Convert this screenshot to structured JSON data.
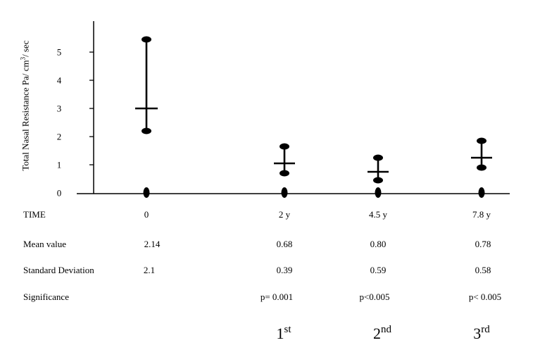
{
  "chart_data": {
    "type": "scatter",
    "ylabel": "Total Nasal Resistance  Pa/ cm3/ sec",
    "ylabel_parts": {
      "main": "Total Nasal Resistance  Pa/ cm",
      "sup": "3",
      "rest": "/ sec"
    },
    "y_ticks": [
      "0",
      "1",
      "2",
      "3",
      "4",
      "5"
    ],
    "ylim": [
      0,
      5.5
    ],
    "x": [
      "0",
      "2  y",
      "4.5 y",
      "7.8 y"
    ],
    "series": [
      {
        "values": [
          3.0,
          1.05,
          0.75,
          1.25
        ],
        "upper": [
          5.45,
          1.65,
          1.25,
          1.85
        ],
        "lower": [
          2.2,
          0.7,
          0.45,
          0.9
        ]
      }
    ],
    "baseline_markers": [
      0,
      0,
      0,
      0
    ],
    "grid": false
  },
  "table": {
    "row_labels": {
      "time": "TIME",
      "mean": "Mean value",
      "sd": "Standard  Deviation",
      "sig": "Significance"
    },
    "mean": [
      "2.14",
      "0.68",
      "0.80",
      "0.78"
    ],
    "sd": [
      "2.1",
      "0.39",
      "0.59",
      "0.58"
    ],
    "significance": [
      "",
      "p= 0.001",
      "p<0.005",
      "p< 0.005"
    ]
  },
  "ordinals": [
    {
      "num": "1",
      "sup": "st"
    },
    {
      "num": "2",
      "sup": "nd"
    },
    {
      "num": "3",
      "sup": "rd"
    }
  ]
}
